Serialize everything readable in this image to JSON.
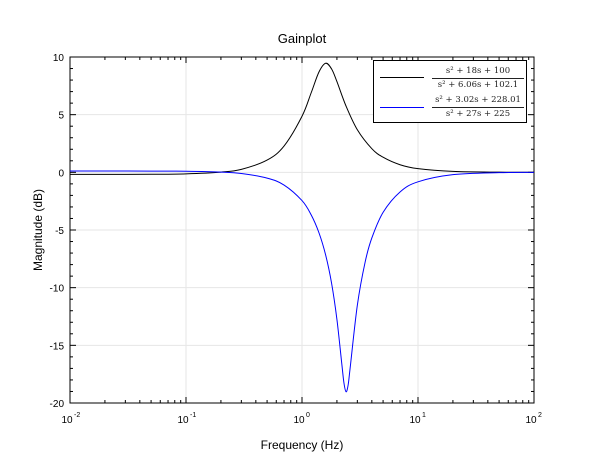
{
  "chart_data": {
    "type": "line",
    "title": "Gainplot",
    "xlabel": "Frequency (Hz)",
    "ylabel": "Magnitude (dB)",
    "xscale": "log",
    "xlim": [
      0.01,
      100
    ],
    "ylim": [
      -20,
      10
    ],
    "grid": true,
    "legend_position": "top-right",
    "x_ticks": [
      {
        "base": "10",
        "exp": "-2"
      },
      {
        "base": "10",
        "exp": "-1"
      },
      {
        "base": "10",
        "exp": "0"
      },
      {
        "base": "10",
        "exp": "1"
      },
      {
        "base": "10",
        "exp": "2"
      }
    ],
    "y_ticks": [
      "10",
      "5",
      "0",
      "-5",
      "-10",
      "-15",
      "-20"
    ],
    "series": [
      {
        "name_numerator": "s² + 18s + 100",
        "name_denominator": "s² + 6.06s + 102.1",
        "color": "#000000",
        "x": [
          0.01,
          0.05,
          0.1,
          0.2,
          0.3,
          0.5,
          0.7,
          1,
          1.2,
          1.4,
          1.6,
          1.8,
          2,
          2.4,
          3,
          4,
          5,
          7,
          10,
          20,
          50,
          100
        ],
        "y": [
          -0.18,
          -0.17,
          -0.13,
          0.02,
          0.26,
          1.06,
          2.28,
          4.86,
          6.9,
          8.7,
          9.46,
          8.96,
          7.87,
          5.73,
          3.69,
          2.05,
          1.31,
          0.66,
          0.32,
          0.08,
          0.013,
          0.003
        ]
      },
      {
        "name_numerator": "s² + 3.02s + 228.01",
        "name_denominator": "s² + 27s + 225",
        "color": "#0000ff",
        "x": [
          0.01,
          0.05,
          0.1,
          0.2,
          0.3,
          0.5,
          0.7,
          1,
          1.2,
          1.4,
          1.6,
          1.8,
          2,
          2.2,
          2.3,
          2.4,
          2.5,
          2.6,
          3,
          3.5,
          4,
          5,
          7,
          10,
          20,
          50,
          100
        ],
        "y": [
          0.115,
          0.11,
          0.09,
          0.02,
          -0.1,
          -0.5,
          -1.1,
          -2.45,
          -3.69,
          -5.24,
          -7.18,
          -9.63,
          -12.75,
          -16.55,
          -18.27,
          -19.03,
          -18.42,
          -16.97,
          -11.52,
          -7.79,
          -5.69,
          -3.47,
          -1.7,
          -0.82,
          -0.2,
          -0.03,
          -0.008
        ]
      }
    ]
  }
}
